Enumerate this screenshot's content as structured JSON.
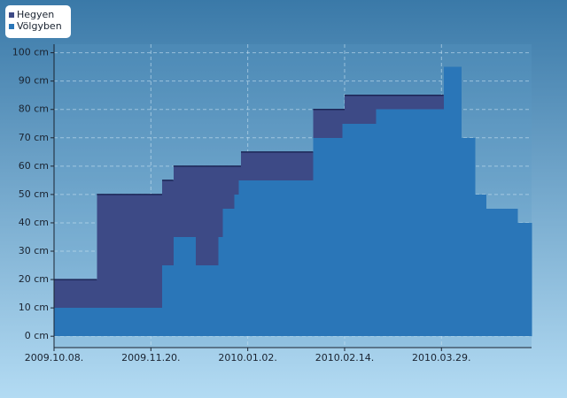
{
  "chart_data": {
    "type": "step-area",
    "xlim": [
      "2009-10-08",
      "2010-05-08"
    ],
    "xticks": [
      {
        "value": "2009-10-08",
        "label": "2009.10.08."
      },
      {
        "value": "2009-11-20",
        "label": "2009.11.20."
      },
      {
        "value": "2010-01-02",
        "label": "2010.01.02."
      },
      {
        "value": "2010-02-14",
        "label": "2010.02.14."
      },
      {
        "value": "2010-03-29",
        "label": "2010.03.29."
      }
    ],
    "ylim": [
      -4,
      103
    ],
    "yticks": [
      {
        "value": 0,
        "label": "0 cm"
      },
      {
        "value": 10,
        "label": "10 cm"
      },
      {
        "value": 20,
        "label": "20 cm"
      },
      {
        "value": 30,
        "label": "30 cm"
      },
      {
        "value": 40,
        "label": "40 cm"
      },
      {
        "value": 50,
        "label": "50 cm"
      },
      {
        "value": 60,
        "label": "60 cm"
      },
      {
        "value": 70,
        "label": "70 cm"
      },
      {
        "value": 80,
        "label": "80 cm"
      },
      {
        "value": 90,
        "label": "90 cm"
      },
      {
        "value": 100,
        "label": "100 cm"
      }
    ],
    "grid": true,
    "legend": "top-left",
    "series": [
      {
        "name": "Hegyen",
        "color": "#3d4a86",
        "x": [
          "2009-10-08",
          "2009-10-27",
          "2009-11-25",
          "2009-11-30",
          "2009-12-30",
          "2010-01-31",
          "2010-02-14",
          "2010-03-30"
        ],
        "values": [
          20,
          50,
          55,
          60,
          65,
          80,
          85,
          85
        ]
      },
      {
        "name": "Völgyben",
        "color": "#2a76b8",
        "x": [
          "2009-10-08",
          "2009-11-25",
          "2009-11-30",
          "2009-12-10",
          "2009-12-20",
          "2009-12-22",
          "2009-12-27",
          "2009-12-29",
          "2010-01-31",
          "2010-02-13",
          "2010-02-28",
          "2010-03-30",
          "2010-04-07",
          "2010-04-13",
          "2010-04-18",
          "2010-05-02",
          "2010-05-08"
        ],
        "values": [
          10,
          25,
          35,
          25,
          35,
          45,
          50,
          55,
          70,
          75,
          80,
          95,
          70,
          50,
          45,
          40,
          40
        ]
      }
    ]
  }
}
